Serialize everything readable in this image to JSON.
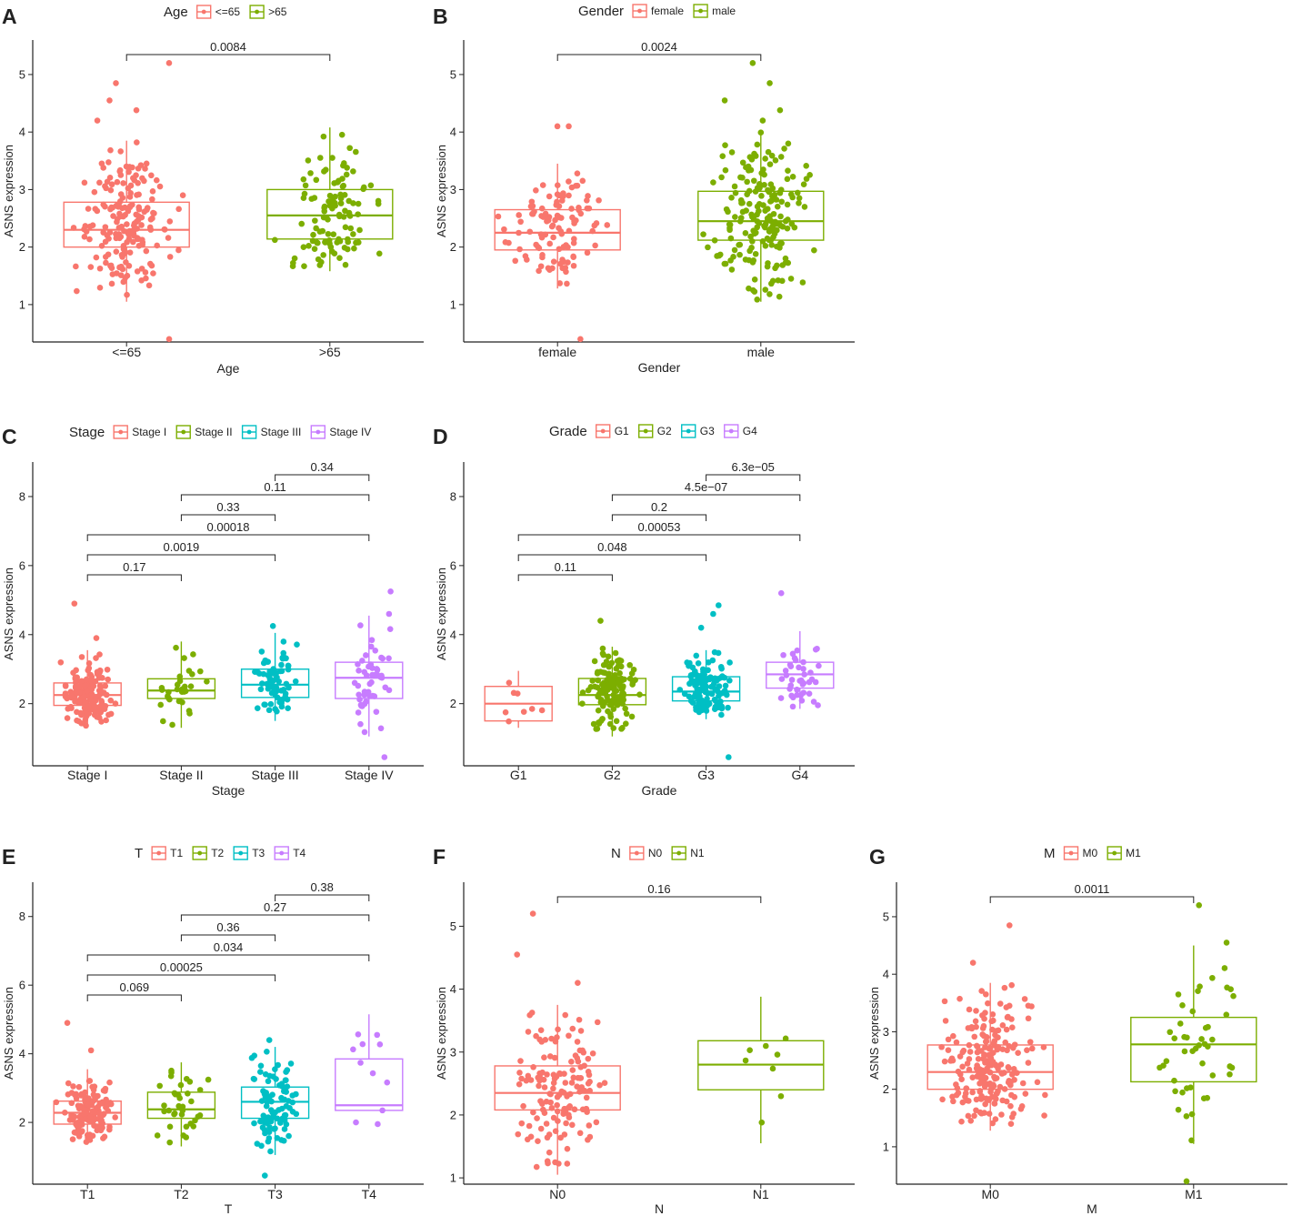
{
  "figure": {
    "panel_labels": [
      "A",
      "B",
      "C",
      "D",
      "E",
      "F",
      "G"
    ],
    "group_colors": [
      "#F8766D",
      "#7CAE00",
      "#00BFC4",
      "#C77CFF"
    ]
  },
  "chart_data": [
    {
      "panel": "A",
      "type": "boxplot",
      "ylabel": "ASNS expression",
      "xlabel": "Age",
      "legend_title": "Age",
      "categories": [
        "<=65",
        ">65"
      ],
      "ylim": [
        0.35,
        5.6
      ],
      "yticks": [
        1,
        2,
        3,
        4,
        5
      ],
      "boxes": [
        {
          "min": 1.05,
          "q1": 2.0,
          "median": 2.3,
          "q3": 2.78,
          "max": 3.85,
          "outliers": [
            0.4,
            4.2,
            4.38,
            4.55,
            4.85,
            5.2
          ],
          "n": 190
        },
        {
          "min": 1.58,
          "q1": 2.14,
          "median": 2.55,
          "q3": 3.0,
          "max": 4.08,
          "outliers": [],
          "n": 110
        }
      ],
      "comparisons": [
        {
          "from": "<=65",
          "to": ">65",
          "label": "0.0084"
        }
      ]
    },
    {
      "panel": "B",
      "type": "boxplot",
      "ylabel": "ASNS expression",
      "xlabel": "Gender",
      "legend_title": "Gender",
      "categories": [
        "female",
        "male"
      ],
      "ylim": [
        0.35,
        5.6
      ],
      "yticks": [
        1,
        2,
        3,
        4,
        5
      ],
      "boxes": [
        {
          "min": 1.28,
          "q1": 1.95,
          "median": 2.25,
          "q3": 2.65,
          "max": 3.45,
          "outliers": [
            0.4,
            4.1,
            4.1
          ],
          "n": 110
        },
        {
          "min": 1.05,
          "q1": 2.12,
          "median": 2.45,
          "q3": 2.97,
          "max": 4.0,
          "outliers": [
            4.2,
            4.38,
            4.55,
            4.85,
            5.2
          ],
          "n": 190
        }
      ],
      "comparisons": [
        {
          "from": "female",
          "to": "male",
          "label": "0.0024"
        }
      ]
    },
    {
      "panel": "C",
      "type": "boxplot",
      "ylabel": "ASNS expression",
      "xlabel": "Stage",
      "legend_title": "Stage",
      "categories": [
        "Stage I",
        "Stage II",
        "Stage III",
        "Stage IV"
      ],
      "ylim": [
        0.2,
        9.0
      ],
      "yticks": [
        2,
        4,
        6,
        8
      ],
      "boxes": [
        {
          "min": 1.35,
          "q1": 1.95,
          "median": 2.25,
          "q3": 2.6,
          "max": 3.55,
          "outliers": [
            3.9,
            4.9
          ],
          "n": 160
        },
        {
          "min": 1.3,
          "q1": 2.15,
          "median": 2.38,
          "q3": 2.72,
          "max": 3.8,
          "outliers": [],
          "n": 30
        },
        {
          "min": 1.5,
          "q1": 2.18,
          "median": 2.55,
          "q3": 3.0,
          "max": 4.05,
          "outliers": [
            4.25
          ],
          "n": 70
        },
        {
          "min": 1.05,
          "q1": 2.15,
          "median": 2.75,
          "q3": 3.2,
          "max": 4.55,
          "outliers": [
            0.45,
            5.25,
            4.6
          ],
          "n": 50
        }
      ],
      "comparisons": [
        {
          "from": "Stage III",
          "to": "Stage IV",
          "label": "0.34"
        },
        {
          "from": "Stage II",
          "to": "Stage IV",
          "label": "0.11"
        },
        {
          "from": "Stage II",
          "to": "Stage III",
          "label": "0.33"
        },
        {
          "from": "Stage I",
          "to": "Stage IV",
          "label": "0.00018"
        },
        {
          "from": "Stage I",
          "to": "Stage III",
          "label": "0.0019"
        },
        {
          "from": "Stage I",
          "to": "Stage II",
          "label": "0.17"
        }
      ]
    },
    {
      "panel": "D",
      "type": "boxplot",
      "ylabel": "ASNS expression",
      "xlabel": "Grade",
      "legend_title": "Grade",
      "categories": [
        "G1",
        "G2",
        "G3",
        "G4"
      ],
      "ylim": [
        0.2,
        9.0
      ],
      "yticks": [
        2,
        4,
        6,
        8
      ],
      "boxes": [
        {
          "min": 1.3,
          "q1": 1.5,
          "median": 2.0,
          "q3": 2.5,
          "max": 2.95,
          "outliers": [],
          "n": 8
        },
        {
          "min": 1.05,
          "q1": 1.97,
          "median": 2.25,
          "q3": 2.73,
          "max": 3.65,
          "outliers": [
            4.4
          ],
          "n": 130
        },
        {
          "min": 1.55,
          "q1": 2.08,
          "median": 2.35,
          "q3": 2.78,
          "max": 3.55,
          "outliers": [
            0.45,
            4.85,
            4.6,
            4.2
          ],
          "n": 120
        },
        {
          "min": 1.85,
          "q1": 2.45,
          "median": 2.85,
          "q3": 3.2,
          "max": 4.1,
          "outliers": [
            5.2
          ],
          "n": 40
        }
      ],
      "comparisons": [
        {
          "from": "G3",
          "to": "G4",
          "label": "6.3e−05"
        },
        {
          "from": "G2",
          "to": "G4",
          "label": "4.5e−07"
        },
        {
          "from": "G2",
          "to": "G3",
          "label": "0.2"
        },
        {
          "from": "G1",
          "to": "G4",
          "label": "0.00053"
        },
        {
          "from": "G1",
          "to": "G3",
          "label": "0.048"
        },
        {
          "from": "G1",
          "to": "G2",
          "label": "0.11"
        }
      ]
    },
    {
      "panel": "E",
      "type": "boxplot",
      "ylabel": "ASNS expression",
      "xlabel": "T",
      "legend_title": "T",
      "categories": [
        "T1",
        "T2",
        "T3",
        "T4"
      ],
      "ylim": [
        0.2,
        9.0
      ],
      "yticks": [
        2,
        4,
        6,
        8
      ],
      "boxes": [
        {
          "min": 1.35,
          "q1": 1.95,
          "median": 2.28,
          "q3": 2.62,
          "max": 3.55,
          "outliers": [
            4.1,
            4.9
          ],
          "n": 140
        },
        {
          "min": 1.3,
          "q1": 2.12,
          "median": 2.38,
          "q3": 2.88,
          "max": 3.75,
          "outliers": [],
          "n": 35
        },
        {
          "min": 1.05,
          "q1": 2.12,
          "median": 2.6,
          "q3": 3.03,
          "max": 4.2,
          "outliers": [
            0.45,
            4.4
          ],
          "n": 90
        },
        {
          "min": 2.35,
          "q1": 2.35,
          "median": 2.5,
          "q3": 3.85,
          "max": 5.15,
          "outliers": [
            1.95,
            2.0,
            4.55
          ],
          "n": 8
        }
      ],
      "comparisons": [
        {
          "from": "T3",
          "to": "T4",
          "label": "0.38"
        },
        {
          "from": "T2",
          "to": "T4",
          "label": "0.27"
        },
        {
          "from": "T2",
          "to": "T3",
          "label": "0.36"
        },
        {
          "from": "T1",
          "to": "T4",
          "label": "0.034"
        },
        {
          "from": "T1",
          "to": "T3",
          "label": "0.00025"
        },
        {
          "from": "T1",
          "to": "T2",
          "label": "0.069"
        }
      ]
    },
    {
      "panel": "F",
      "type": "boxplot",
      "ylabel": "ASNS expression",
      "xlabel": "N",
      "legend_title": "N",
      "categories": [
        "N0",
        "N1"
      ],
      "ylim": [
        0.9,
        5.7
      ],
      "yticks": [
        1,
        2,
        3,
        4,
        5
      ],
      "boxes": [
        {
          "min": 1.05,
          "q1": 2.08,
          "median": 2.35,
          "q3": 2.78,
          "max": 3.75,
          "outliers": [
            4.1,
            4.55,
            5.2
          ],
          "n": 140
        },
        {
          "min": 1.55,
          "q1": 2.4,
          "median": 2.8,
          "q3": 3.18,
          "max": 3.88,
          "outliers": [],
          "n": 8
        }
      ],
      "comparisons": [
        {
          "from": "N0",
          "to": "N1",
          "label": "0.16"
        }
      ]
    },
    {
      "panel": "G",
      "type": "boxplot",
      "ylabel": "ASNS expression",
      "xlabel": "M",
      "legend_title": "M",
      "categories": [
        "M0",
        "M1"
      ],
      "ylim": [
        0.35,
        5.6
      ],
      "yticks": [
        1,
        2,
        3,
        4,
        5
      ],
      "boxes": [
        {
          "min": 1.28,
          "q1": 2.0,
          "median": 2.3,
          "q3": 2.77,
          "max": 3.85,
          "outliers": [
            4.2,
            4.85
          ],
          "n": 220
        },
        {
          "min": 1.05,
          "q1": 2.13,
          "median": 2.78,
          "q3": 3.25,
          "max": 4.5,
          "outliers": [
            0.4,
            4.55,
            5.2
          ],
          "n": 45
        }
      ],
      "comparisons": [
        {
          "from": "M0",
          "to": "M1",
          "label": "0.0011"
        }
      ]
    }
  ]
}
